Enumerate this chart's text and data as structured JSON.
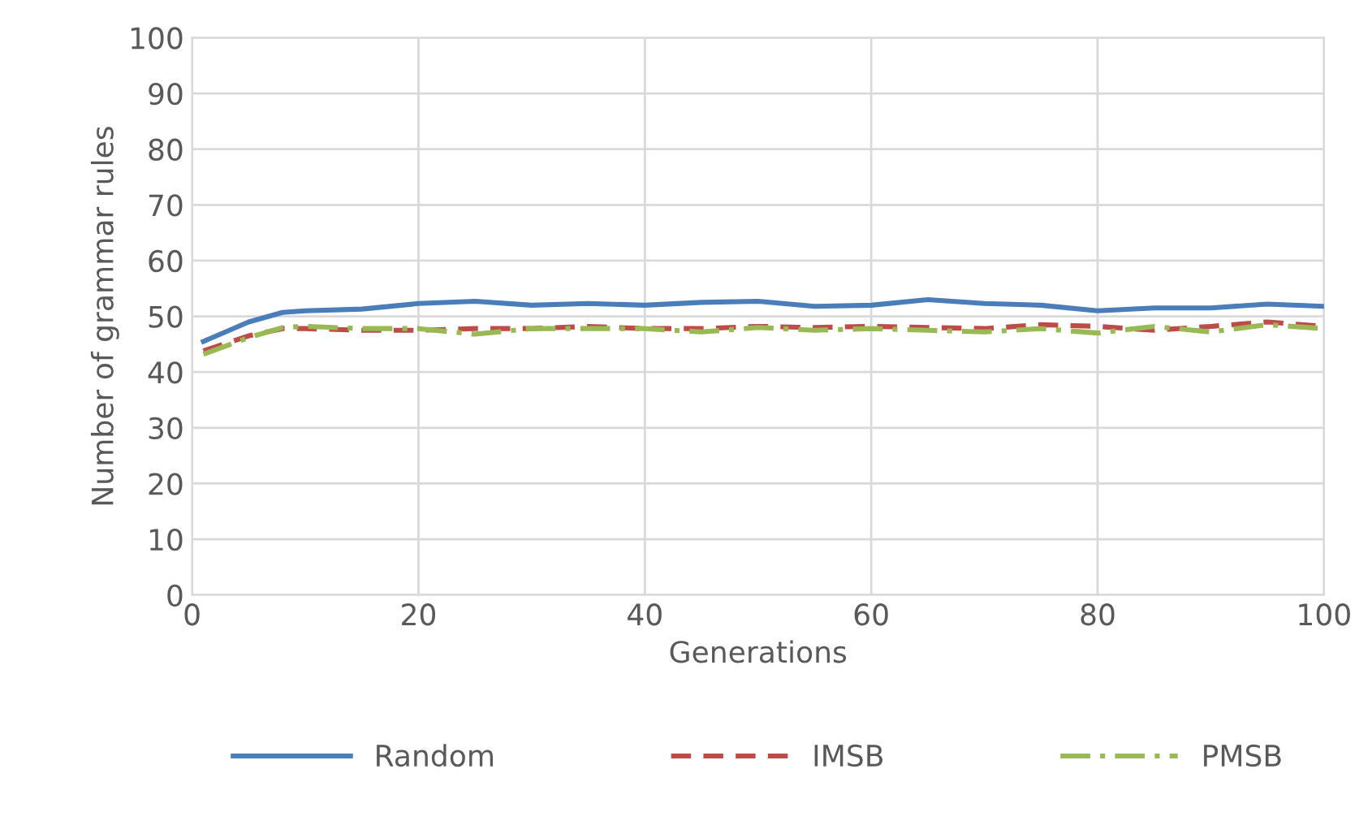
{
  "chart_data": {
    "type": "line",
    "xlabel": "Generations",
    "ylabel": "Number of grammar rules",
    "x": [
      1,
      5,
      8,
      10,
      15,
      20,
      25,
      30,
      35,
      40,
      45,
      50,
      55,
      60,
      65,
      70,
      75,
      80,
      85,
      90,
      95,
      100
    ],
    "series": [
      {
        "name": "Random",
        "color": "#4a7ebb",
        "line_style": "solid",
        "values": [
          45.5,
          49,
          50.7,
          51,
          51.3,
          52.3,
          52.7,
          52,
          52.3,
          52,
          52.5,
          52.7,
          51.8,
          52,
          53,
          52.3,
          52,
          51,
          51.5,
          51.5,
          52.2,
          51.8
        ]
      },
      {
        "name": "IMSB",
        "color": "#be4b48",
        "line_style": "dashed",
        "values": [
          43.8,
          46.5,
          47.8,
          47.8,
          47.5,
          47.5,
          47.8,
          47.8,
          48.2,
          47.8,
          47.8,
          48.2,
          48,
          48.2,
          48,
          47.8,
          48.5,
          48.2,
          47.5,
          48.2,
          49,
          48.2
        ]
      },
      {
        "name": "PMSB",
        "color": "#98b954",
        "line_style": "dashdot",
        "values": [
          43.2,
          46.2,
          48,
          48.2,
          47.8,
          47.8,
          46.8,
          47.8,
          47.8,
          47.8,
          47.2,
          48,
          47.5,
          47.8,
          47.5,
          47.2,
          47.8,
          47,
          48.2,
          47.2,
          48.5,
          47.8
        ]
      }
    ],
    "xlim": [
      0,
      100
    ],
    "xticks": [
      0,
      20,
      40,
      60,
      80,
      100
    ],
    "ylim": [
      0,
      100
    ],
    "yticks": [
      0,
      10,
      20,
      30,
      40,
      50,
      60,
      70,
      80,
      90,
      100
    ],
    "grid": true,
    "legend": "bottom",
    "marker": "none"
  }
}
